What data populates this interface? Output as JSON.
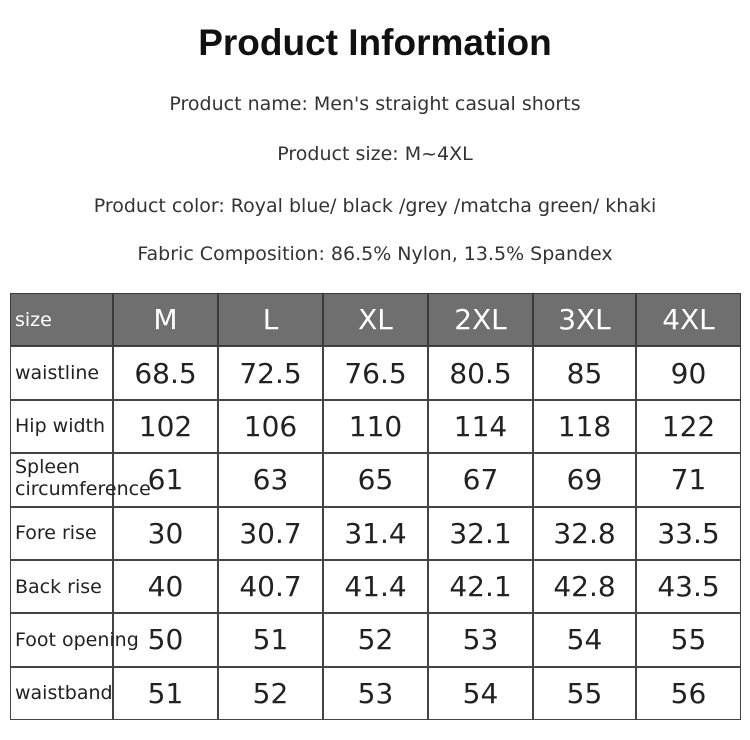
{
  "header": {
    "title": "Product Information",
    "lines": [
      "Product name: Men's straight casual shorts",
      "Product size: M~4XL",
      "Product color: Royal blue/ black /grey /matcha green/ khaki",
      "Fabric Composition: 86.5% Nylon, 13.5% Spandex"
    ]
  },
  "table": {
    "columns": [
      "size",
      "M",
      "L",
      "XL",
      "2XL",
      "3XL",
      "4XL"
    ],
    "rows": [
      [
        "waistline",
        68.5,
        72.5,
        76.5,
        80.5,
        85,
        90
      ],
      [
        "Hip width",
        102,
        106,
        110,
        114,
        118,
        122
      ],
      [
        "Spleen circumference",
        61,
        63,
        65,
        67,
        69,
        71
      ],
      [
        "Fore rise",
        30,
        30.7,
        31.4,
        32.1,
        32.8,
        33.5
      ],
      [
        "Back rise",
        40,
        40.7,
        41.4,
        42.1,
        42.8,
        43.5
      ],
      [
        "Foot opening",
        50,
        51,
        52,
        53,
        54,
        55
      ],
      [
        "waistband",
        51,
        52,
        53,
        54,
        55,
        56
      ]
    ]
  }
}
